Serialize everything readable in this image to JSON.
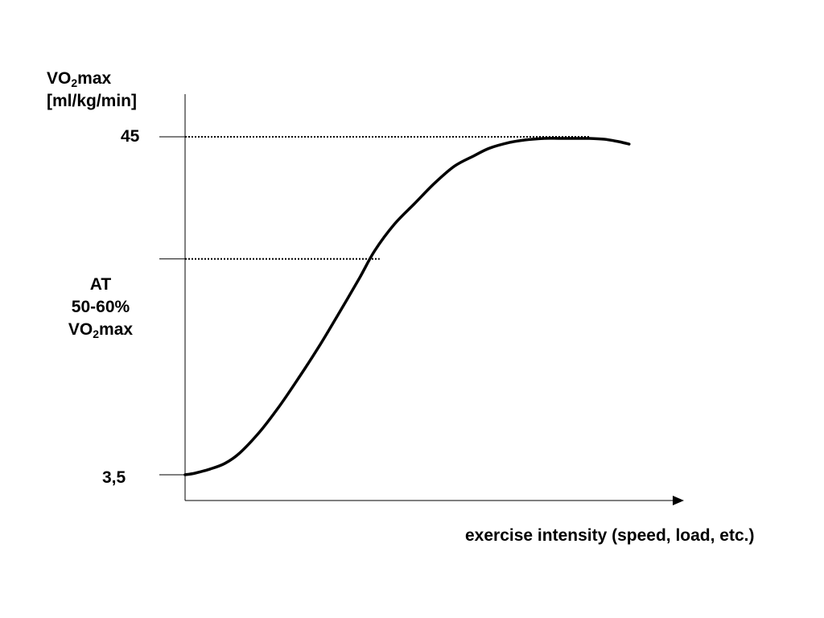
{
  "chart_data": {
    "type": "line",
    "title": "",
    "ylabel": {
      "line1": {
        "prefix": "VO",
        "sub": "2",
        "suffix": "max"
      },
      "line2": "[ml/kg/min]"
    },
    "xlabel": "exercise intensity (speed, load, etc.)",
    "yticks": [
      {
        "value": 3.5,
        "label": "3,5"
      },
      {
        "value": 45,
        "label": "45"
      }
    ],
    "threshold": {
      "value": 30,
      "line1": "AT",
      "line2": "50-60%",
      "line3": {
        "prefix": "VO",
        "sub": "2",
        "suffix": "max"
      }
    },
    "ylim": [
      1,
      52
    ],
    "xlim": [
      0,
      100
    ],
    "reference_lines": [
      {
        "y": 45,
        "x_end": 81,
        "style": "dotted"
      },
      {
        "y": 30,
        "x_end": 39,
        "style": "dotted"
      }
    ],
    "series": [
      {
        "x": [
          0,
          2,
          5,
          8,
          11,
          15,
          19,
          23,
          27,
          31,
          35,
          38,
          42,
          46,
          50,
          54,
          58,
          61,
          65,
          68,
          72,
          75,
          78,
          81,
          84,
          87,
          89
        ],
        "y": [
          3.5,
          3.7,
          4.2,
          4.9,
          6.2,
          8.8,
          12.0,
          15.6,
          19.4,
          23.5,
          27.7,
          31.0,
          34.3,
          36.8,
          39.3,
          41.4,
          42.7,
          43.6,
          44.3,
          44.6,
          44.8,
          44.8,
          44.8,
          44.8,
          44.7,
          44.4,
          44.1
        ]
      }
    ],
    "grid": false,
    "legend": "none",
    "line_color": "#000000"
  }
}
